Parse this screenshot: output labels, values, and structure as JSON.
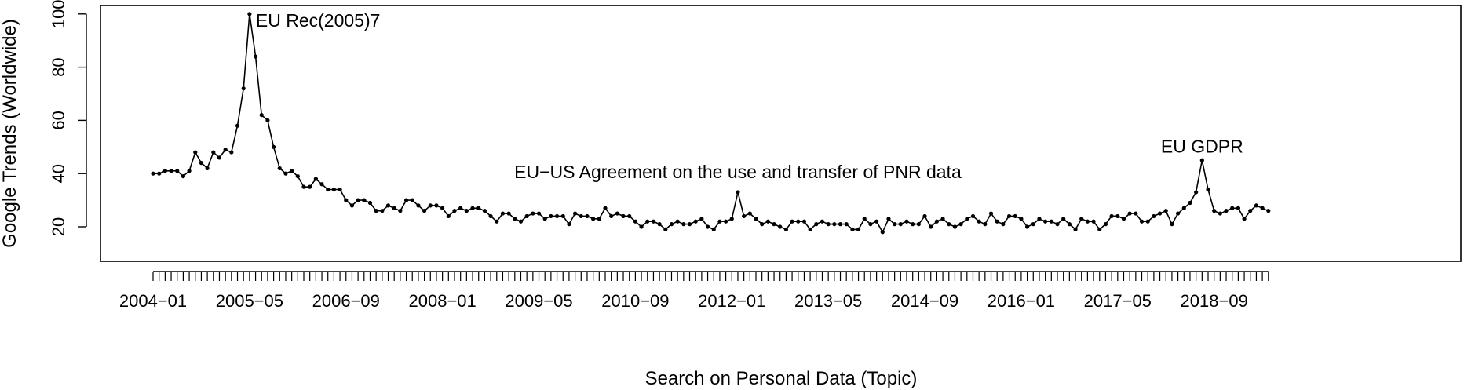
{
  "chart_data": {
    "type": "line",
    "title": "",
    "xlabel": "Search on Personal Data (Topic)",
    "ylabel": "Google Trends (Worldwide)",
    "ylim": [
      18,
      100
    ],
    "yticks": [
      20,
      40,
      60,
      80,
      100
    ],
    "x_start": "2004-01",
    "x_tick_labels": [
      "2004−01",
      "2005−05",
      "2006−09",
      "2008−01",
      "2009−05",
      "2010−09",
      "2012−01",
      "2013−05",
      "2014−09",
      "2016−01",
      "2017−05",
      "2018−09"
    ],
    "x_tick_indices": [
      0,
      16,
      32,
      48,
      64,
      80,
      96,
      112,
      128,
      144,
      160,
      176
    ],
    "series": [
      {
        "values": [
          40,
          40,
          41,
          41,
          41,
          39,
          41,
          48,
          44,
          42,
          48,
          46,
          49,
          48,
          58,
          72,
          100,
          84,
          62,
          60,
          50,
          42,
          40,
          41,
          39,
          35,
          35,
          38,
          36,
          34,
          34,
          34,
          30,
          28,
          30,
          30,
          29,
          26,
          26,
          28,
          27,
          26,
          30,
          30,
          28,
          26,
          28,
          28,
          27,
          24,
          26,
          27,
          26,
          27,
          27,
          26,
          24,
          22,
          25,
          25,
          23,
          22,
          24,
          25,
          25,
          23,
          24,
          24,
          24,
          21,
          25,
          24,
          24,
          23,
          23,
          27,
          24,
          25,
          24,
          24,
          22,
          20,
          22,
          22,
          21,
          19,
          21,
          22,
          21,
          21,
          22,
          23,
          20,
          19,
          22,
          22,
          23,
          33,
          24,
          25,
          23,
          21,
          22,
          21,
          20,
          19,
          22,
          22,
          22,
          19,
          21,
          22,
          21,
          21,
          21,
          21,
          19,
          19,
          23,
          21,
          22,
          18,
          23,
          21,
          21,
          22,
          21,
          21,
          24,
          20,
          22,
          23,
          21,
          20,
          21,
          23,
          24,
          22,
          21,
          25,
          22,
          21,
          24,
          24,
          23,
          20,
          21,
          23,
          22,
          22,
          21,
          23,
          21,
          19,
          23,
          22,
          22,
          19,
          21,
          24,
          24,
          23,
          25,
          25,
          22,
          22,
          24,
          25,
          26,
          21,
          25,
          27,
          29,
          33,
          45,
          34,
          26,
          25,
          26,
          27,
          27,
          23,
          26,
          28,
          27,
          26
        ]
      }
    ],
    "annotations": [
      {
        "text": "EU Rec(2005)7",
        "index": 16,
        "value": 100
      },
      {
        "text": "EU−US Agreement on the use and transfer of PNR data",
        "index": 97,
        "value": 33
      },
      {
        "text": "EU GDPR",
        "index": 174,
        "value": 45
      }
    ],
    "grid": false,
    "legend": "none"
  }
}
